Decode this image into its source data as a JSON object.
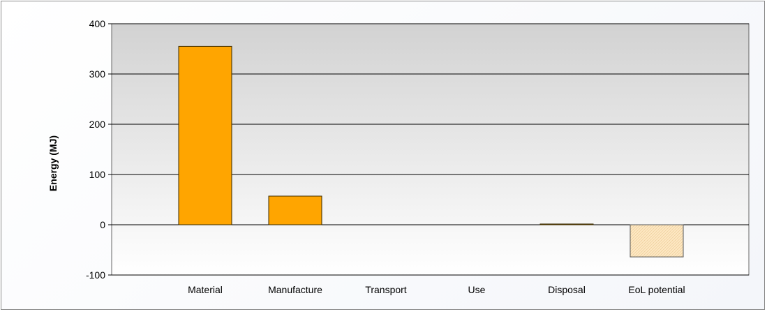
{
  "chart_data": {
    "type": "bar",
    "title": "",
    "xlabel": "",
    "ylabel": "Energy (MJ)",
    "categories": [
      "Material",
      "Manufacture",
      "Transport",
      "Use",
      "Disposal",
      "EoL potential"
    ],
    "values": [
      355,
      57,
      0,
      0,
      1.5,
      -64
    ],
    "ylim": [
      -100,
      400
    ],
    "yticks": [
      "-100",
      "0",
      "100",
      "200",
      "300",
      "400"
    ],
    "grid": "horizontal",
    "colors": {
      "bar": "#ffa500",
      "bar_stroke": "#3a2a00",
      "negative_bar": "#fde7c2",
      "negative_bar_stroke": "#555555",
      "plot_top": "#d2d2d2",
      "plot_bottom": "#ffffff",
      "grid": "#000000"
    }
  }
}
